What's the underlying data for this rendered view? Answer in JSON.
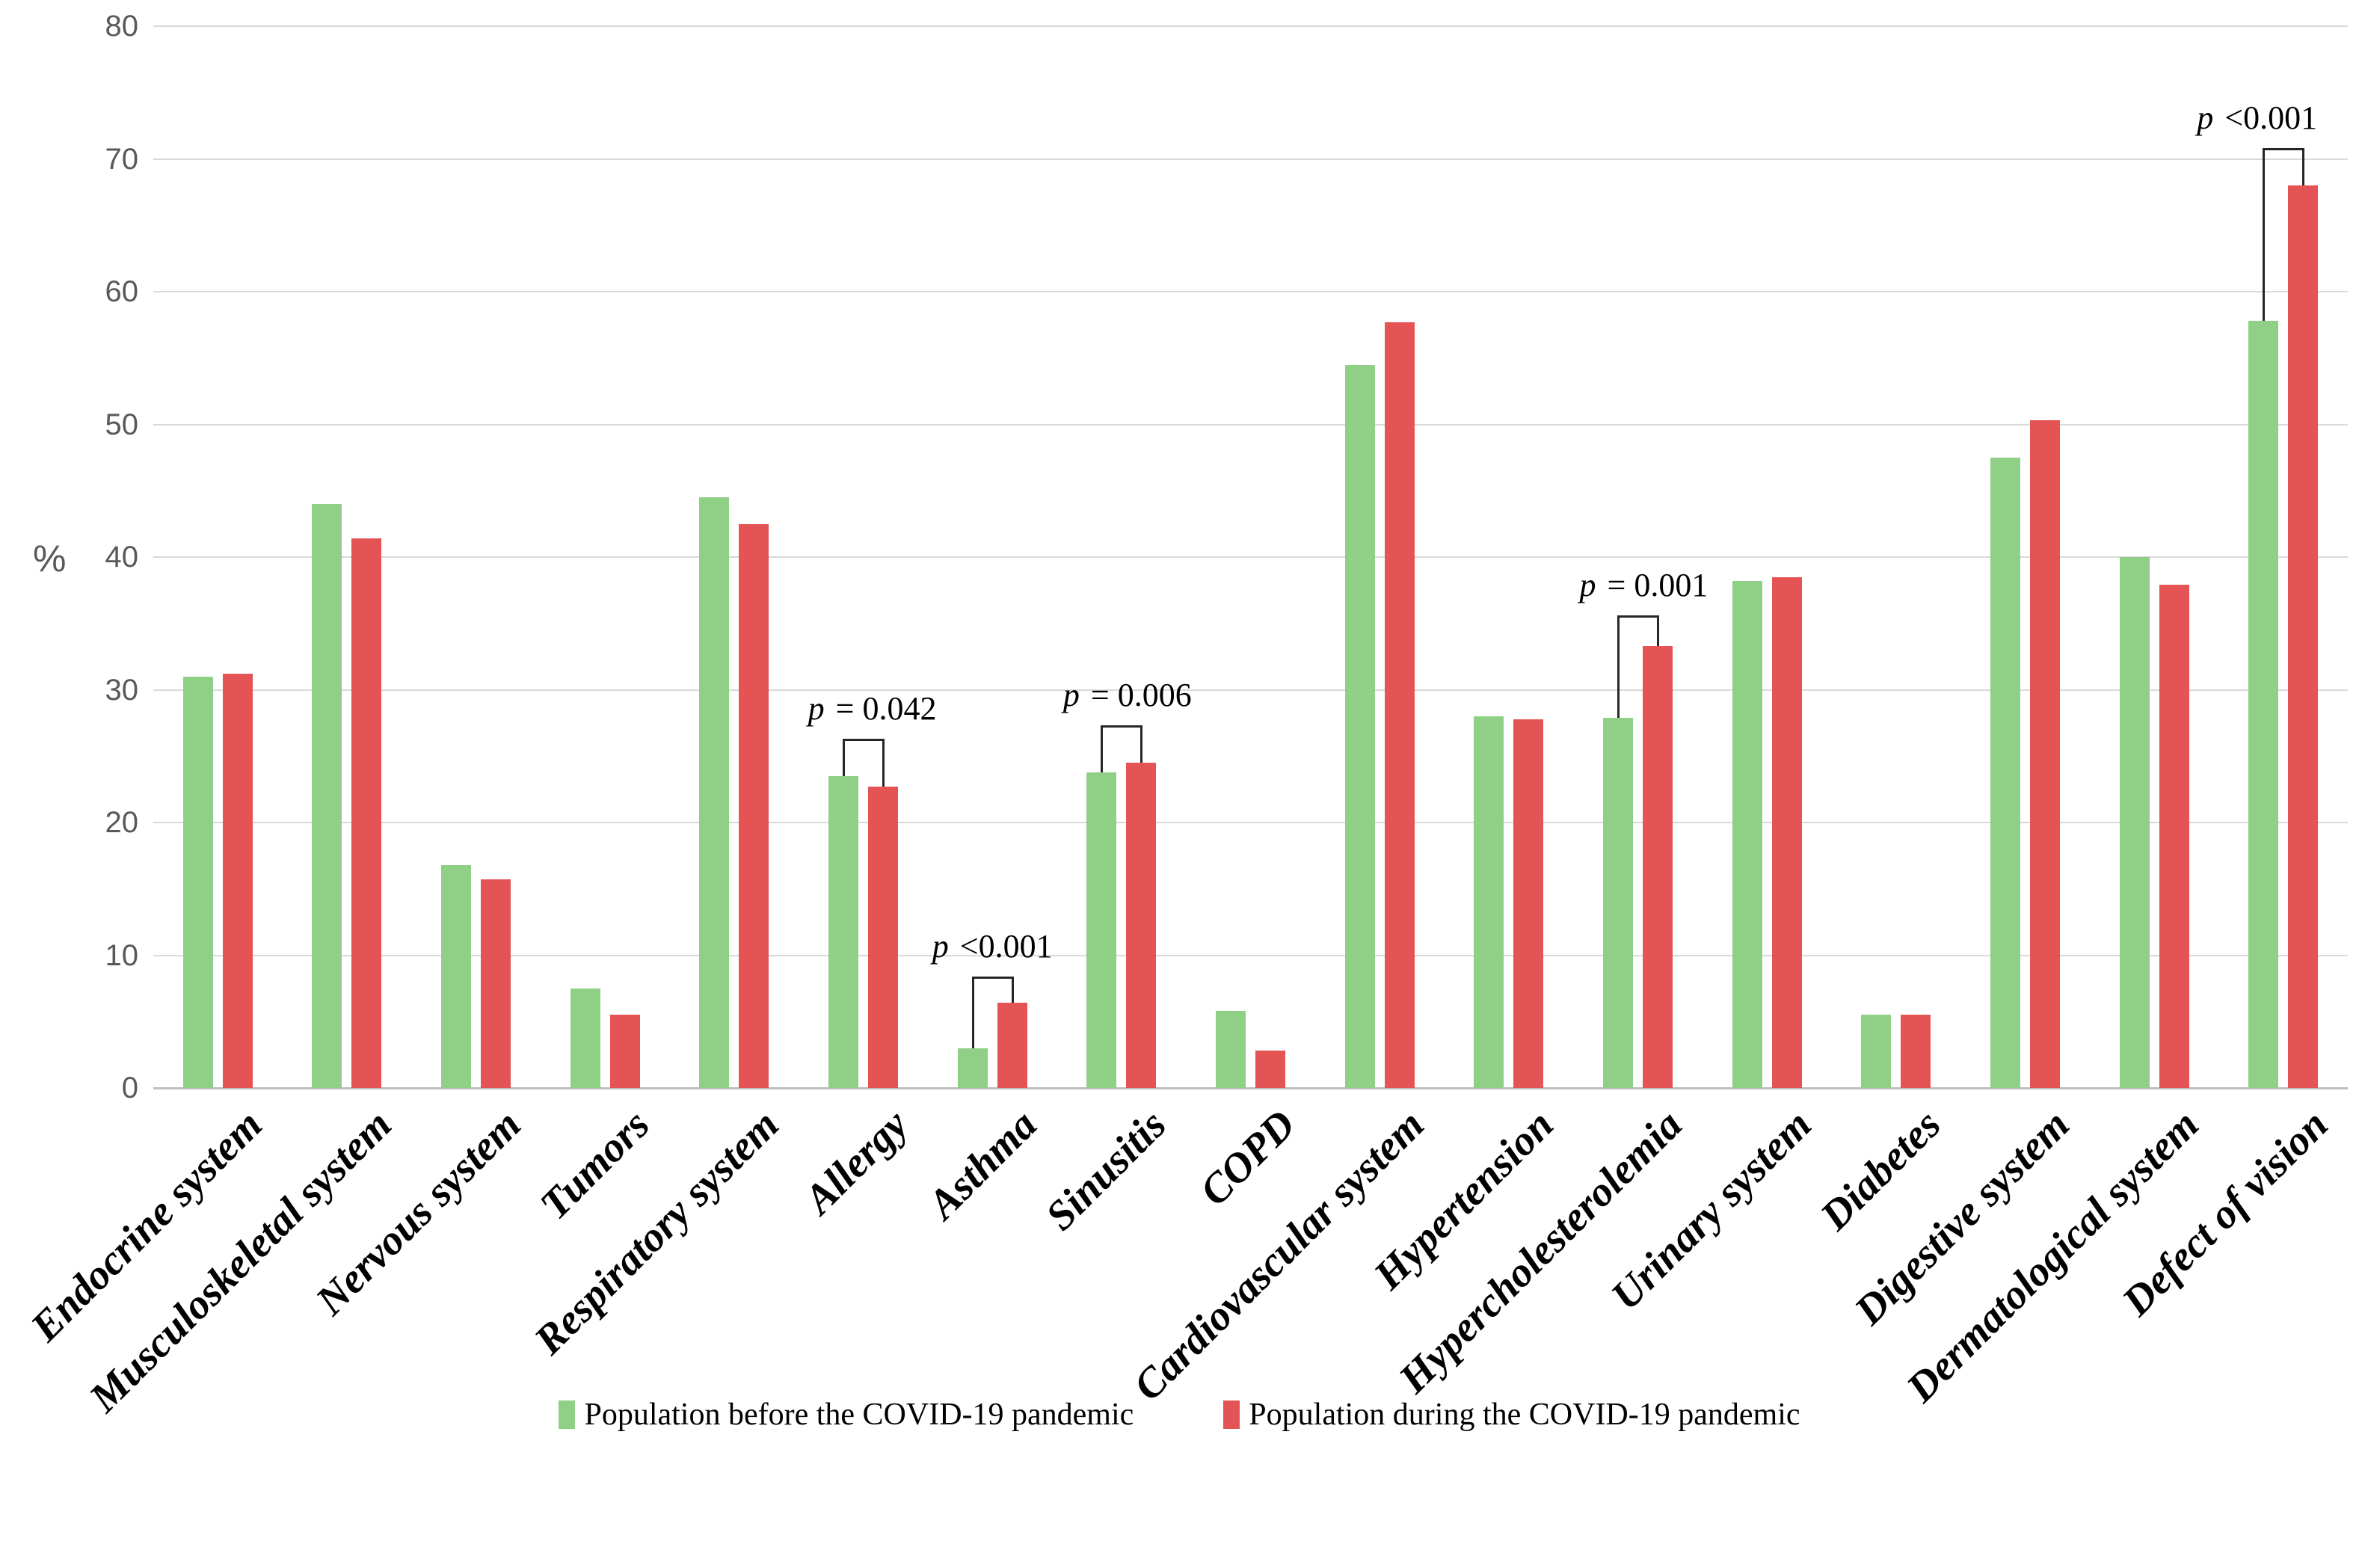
{
  "axis": {
    "percent_label": "%"
  },
  "chart_data": {
    "type": "bar",
    "title": "",
    "xlabel": "",
    "ylabel": "%",
    "ylim": [
      0,
      80
    ],
    "ytick_step": 10,
    "grid": true,
    "legend_position": "bottom",
    "colors": {
      "before": "#8fcf86",
      "during": "#e45455",
      "gridline": "#d9d9d9",
      "axis_line": "#bfbfbf",
      "tick_text": "#595959",
      "annotation_line": "#262626"
    },
    "categories": [
      "Endocrine system",
      "Musculoskeletal system",
      "Nervous system",
      "Tumors",
      "Respiratory system",
      "Allergy",
      "Asthma",
      "Sinusitis",
      "COPD",
      "Cardiovascular system",
      "Hypertension",
      "Hypercholesterolemia",
      "Urinary system",
      "Diabetes",
      "Digestive system",
      "Dermatological system",
      "Defect of vision"
    ],
    "series": [
      {
        "name": "Population before the COVID-19 pandemic",
        "color": "#8fcf86",
        "values": [
          31.0,
          44.0,
          16.8,
          7.5,
          44.5,
          23.5,
          3.0,
          23.8,
          5.8,
          54.5,
          28.0,
          27.9,
          38.2,
          5.5,
          47.5,
          40.0,
          57.8
        ]
      },
      {
        "name": "Population during the COVID-19 pandemic",
        "color": "#e45455",
        "values": [
          31.2,
          41.4,
          15.7,
          5.5,
          42.5,
          22.7,
          6.4,
          24.5,
          2.8,
          57.7,
          27.8,
          33.3,
          38.5,
          5.5,
          50.3,
          37.9,
          68.0
        ]
      }
    ],
    "annotations": [
      {
        "category": "Allergy",
        "label": "p = 0.042",
        "p": "p",
        "rest": "= 0.042",
        "bracket_top": 26.3,
        "text_dx": 12
      },
      {
        "category": "Asthma",
        "label": "p <0.001",
        "p": "p",
        "rest": "<0.001",
        "bracket_top": 8.4,
        "text_dx": 0
      },
      {
        "category": "Sinusitis",
        "label": "p = 0.006",
        "p": "p",
        "rest": "= 0.006",
        "bracket_top": 27.3,
        "text_dx": 8
      },
      {
        "category": "Hypercholesterolemia",
        "label": "p = 0.001",
        "p": "p",
        "rest": "= 0.001",
        "bracket_top": 35.6,
        "text_dx": 8
      },
      {
        "category": "Defect of vision",
        "label": "p <0.001",
        "p": "p",
        "rest": "<0.001",
        "bracket_top": 70.8,
        "text_dx": -35
      }
    ]
  }
}
